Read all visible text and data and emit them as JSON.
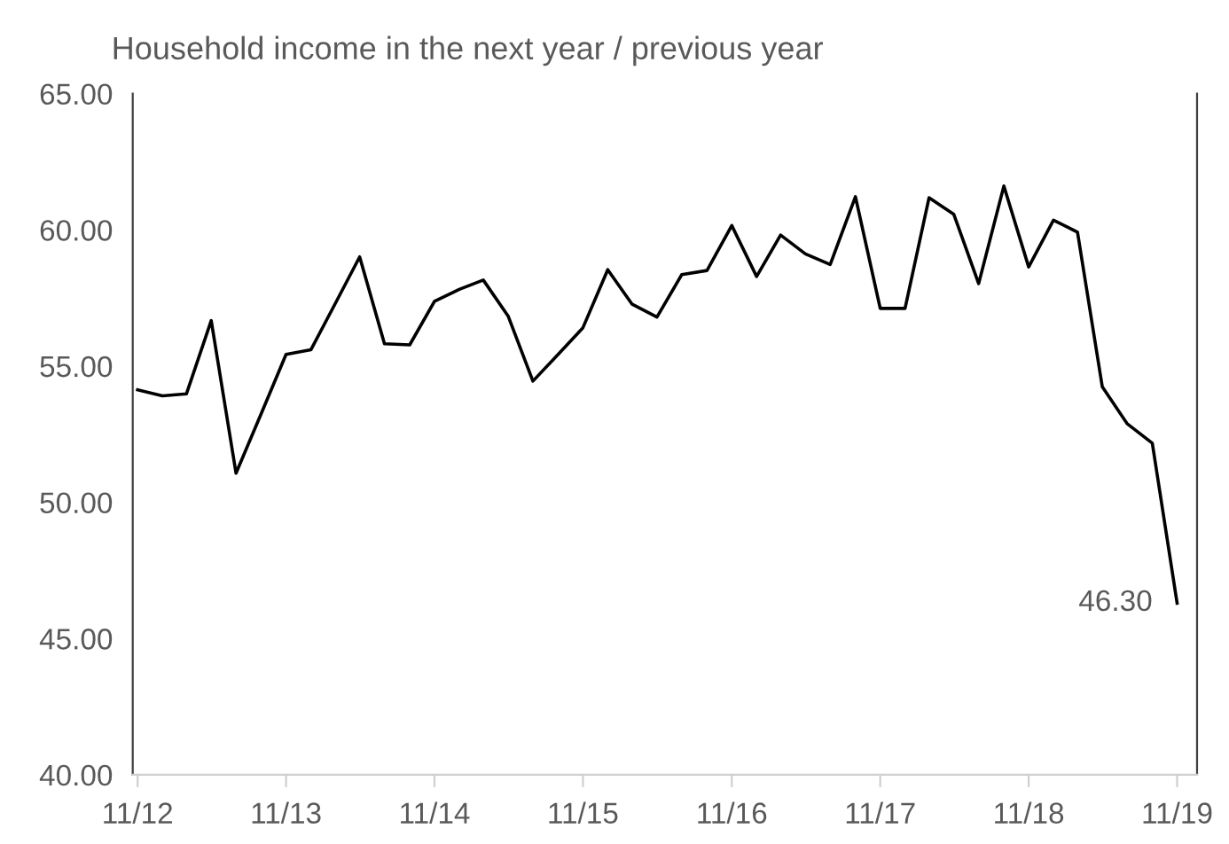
{
  "chart_data": {
    "type": "line",
    "title": "Household income in the next year / previous year",
    "x": [
      "2012-11",
      "2013-01",
      "2013-03",
      "2013-05",
      "2013-07",
      "2013-09",
      "2013-11",
      "2014-01",
      "2014-03",
      "2014-05",
      "2014-07",
      "2014-09",
      "2014-11",
      "2015-01",
      "2015-03",
      "2015-05",
      "2015-07",
      "2015-09",
      "2015-11",
      "2016-01",
      "2016-03",
      "2016-05",
      "2016-07",
      "2016-09",
      "2016-11",
      "2017-01",
      "2017-03",
      "2017-05",
      "2017-07",
      "2017-09",
      "2017-11",
      "2018-01",
      "2018-03",
      "2018-05",
      "2018-07",
      "2018-09",
      "2018-11",
      "2019-01",
      "2019-03",
      "2019-05",
      "2019-07",
      "2019-09",
      "2019-11"
    ],
    "series": [
      {
        "color": "#000000",
        "values": [
          54.13,
          53.91,
          53.98,
          56.67,
          51.07,
          53.26,
          55.43,
          55.6,
          57.27,
          59.01,
          55.82,
          55.78,
          57.38,
          57.82,
          58.16,
          56.84,
          54.45,
          55.43,
          56.41,
          58.54,
          57.27,
          56.8,
          58.36,
          58.51,
          60.16,
          58.29,
          59.81,
          59.12,
          58.73,
          61.22,
          57.12,
          57.12,
          61.18,
          60.57,
          58.03,
          61.61,
          58.64,
          60.36,
          59.92,
          54.24,
          52.89,
          52.17,
          46.3
        ]
      }
    ],
    "ylim": [
      40,
      65
    ],
    "yticks": [
      {
        "value": 40,
        "label": "40.00"
      },
      {
        "value": 45,
        "label": "45.00"
      },
      {
        "value": 50,
        "label": "50.00"
      },
      {
        "value": 55,
        "label": "55.00"
      },
      {
        "value": 60,
        "label": "60.00"
      },
      {
        "value": 65,
        "label": "65.00"
      }
    ],
    "xlim": [
      "2012-10-20",
      "2019-12-20"
    ],
    "xticks": [
      {
        "value": "2012-11-01",
        "label": "11/12"
      },
      {
        "value": "2013-11-01",
        "label": "11/13"
      },
      {
        "value": "2014-11-01",
        "label": "11/14"
      },
      {
        "value": "2015-11-01",
        "label": "11/15"
      },
      {
        "value": "2016-11-01",
        "label": "11/16"
      },
      {
        "value": "2017-11-01",
        "label": "11/17"
      },
      {
        "value": "2018-11-01",
        "label": "11/18"
      },
      {
        "value": "2019-11-01",
        "label": "11/19"
      }
    ],
    "annotations": [
      {
        "text": "46.30",
        "x": "2019-11",
        "y": 46.3
      }
    ],
    "grid": false,
    "legend": false,
    "marker": "none",
    "line_style": "solid"
  }
}
